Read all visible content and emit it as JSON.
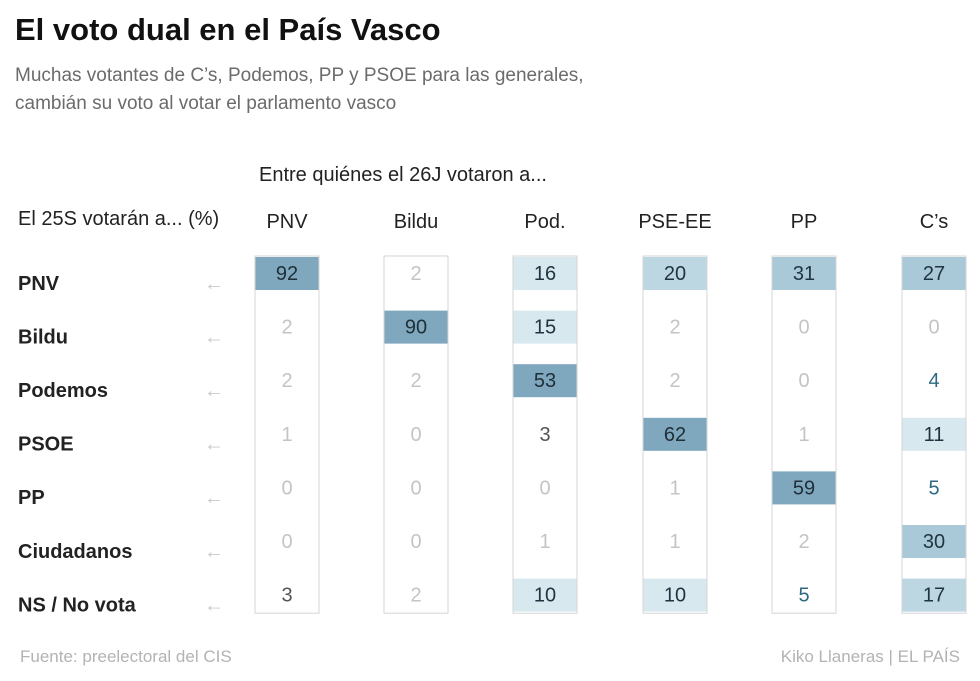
{
  "header": {
    "title": "El voto dual en el País Vasco",
    "subtitle_lines": [
      "Muchas votantes de C’s, Podemos, PP y PSOE para las generales,",
      "cambián su voto al votar el parlamento vasco"
    ]
  },
  "chart_data": {
    "type": "table",
    "column_header": "Entre quiénes el 26J votaron a...",
    "row_header": "El 25S votarán a... (%)",
    "arrow": "←",
    "columns": [
      "PNV",
      "Bildu",
      "Pod.",
      "PSE-EE",
      "PP",
      "C’s"
    ],
    "rows": [
      {
        "label": "PNV",
        "values": [
          92,
          2,
          16,
          20,
          31,
          27
        ]
      },
      {
        "label": "Bildu",
        "values": [
          2,
          90,
          15,
          2,
          0,
          0
        ]
      },
      {
        "label": "Podemos",
        "values": [
          2,
          2,
          53,
          2,
          0,
          4
        ]
      },
      {
        "label": "PSOE",
        "values": [
          1,
          0,
          3,
          62,
          1,
          11
        ]
      },
      {
        "label": "PP",
        "values": [
          0,
          0,
          0,
          1,
          59,
          5
        ]
      },
      {
        "label": "Ciudadanos",
        "values": [
          0,
          0,
          1,
          1,
          2,
          30
        ]
      },
      {
        "label": "NS / No vota",
        "values": [
          3,
          2,
          10,
          10,
          5,
          17
        ]
      }
    ]
  },
  "footer": {
    "source": "Fuente: preelectoral del CIS",
    "credit": "Kiko Llaneras  |  EL PAÍS"
  }
}
